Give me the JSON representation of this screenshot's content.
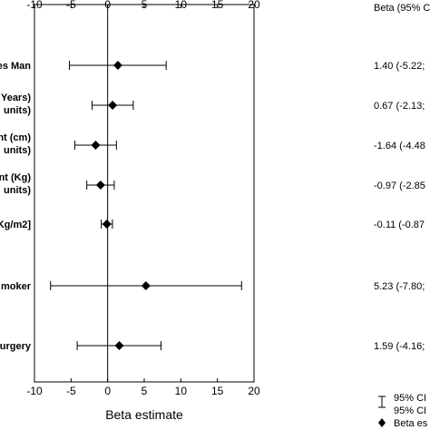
{
  "chart_data": {
    "type": "forest",
    "xlabel": "Beta estimate",
    "xlim": [
      -10,
      20
    ],
    "xticks": [
      "-10",
      "-5",
      "0",
      "5",
      "10",
      "15",
      "20"
    ],
    "column_header": "Beta (95% C",
    "reference_line": 0,
    "rows": [
      {
        "label_lines": [
          "es Man"
        ],
        "beta": 1.4,
        "ci_low": -5.22,
        "ci_high": 8.0,
        "estimate_text": "1.40 (-5.22;"
      },
      {
        "label_lines": [
          "Years)",
          "units)"
        ],
        "beta": 0.67,
        "ci_low": -2.13,
        "ci_high": 3.5,
        "estimate_text": "0.67 (-2.13;"
      },
      {
        "label_lines": [
          "nt (cm)",
          "units)"
        ],
        "beta": -1.64,
        "ci_low": -4.48,
        "ci_high": 1.2,
        "estimate_text": "-1.64 (-4.48"
      },
      {
        "label_lines": [
          "nt (Kg)",
          "units)"
        ],
        "beta": -0.97,
        "ci_low": -2.85,
        "ci_high": 0.9,
        "estimate_text": "-0.97 (-2.85"
      },
      {
        "label_lines": [
          "Kg/m2]"
        ],
        "beta": -0.11,
        "ci_low": -0.87,
        "ci_high": 0.65,
        "estimate_text": "-0.11 (-0.87"
      },
      {
        "label_lines": [
          "moker"
        ],
        "beta": 5.23,
        "ci_low": -7.8,
        "ci_high": 18.3,
        "estimate_text": "5.23 (-7.80;"
      },
      {
        "label_lines": [
          "urgery"
        ],
        "beta": 1.59,
        "ci_low": -4.16,
        "ci_high": 7.3,
        "estimate_text": "1.59 (-4.16;"
      }
    ],
    "legend": {
      "ci_line1": "95% CI",
      "ci_line2": "95% CI",
      "point": "Beta es"
    }
  }
}
